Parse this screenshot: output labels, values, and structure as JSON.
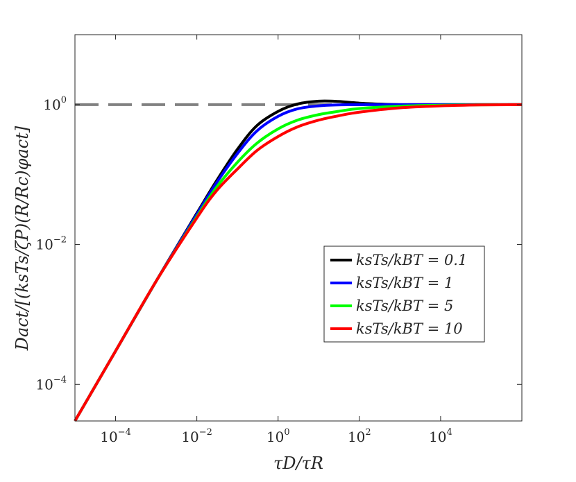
{
  "chart_data": {
    "type": "line",
    "title": "",
    "xlabel": "τD/τR",
    "ylabel": "Dact/[(ksTs/ζP)(R/Rc)φact]",
    "xscale": "log",
    "yscale": "log",
    "xlim": [
      1e-05,
      1000000.0
    ],
    "ylim": [
      3e-05,
      10
    ],
    "grid": false,
    "legend_position": "center-right",
    "x_ticks": [
      {
        "value": 0.0001,
        "base": "10",
        "exp": "−4"
      },
      {
        "value": 0.01,
        "base": "10",
        "exp": "−2"
      },
      {
        "value": 1,
        "base": "10",
        "exp": "0"
      },
      {
        "value": 100,
        "base": "10",
        "exp": "2"
      },
      {
        "value": 10000,
        "base": "10",
        "exp": "4"
      }
    ],
    "y_ticks": [
      {
        "value": 0.0001,
        "base": "10",
        "exp": "−4"
      },
      {
        "value": 0.01,
        "base": "10",
        "exp": "−2"
      },
      {
        "value": 1,
        "base": "10",
        "exp": "0"
      }
    ],
    "reference_line": {
      "y": 1,
      "style": "dashed",
      "color": "#808080"
    },
    "series": [
      {
        "name": "ksTs/kBT = 0.1",
        "color": "#000000",
        "x": [
          1e-05,
          0.0001,
          0.001,
          0.01,
          0.03,
          0.1,
          0.3,
          1,
          3,
          10,
          30,
          100,
          300,
          1000,
          3000,
          10000,
          100000,
          1000000
        ],
        "y": [
          3e-05,
          0.0003,
          0.003,
          0.028,
          0.08,
          0.23,
          0.5,
          0.8,
          1.02,
          1.12,
          1.11,
          1.05,
          1.02,
          1.0,
          1.0,
          1.0,
          1.0,
          1.0
        ]
      },
      {
        "name": "ksTs/kBT = 1",
        "color": "#0000ff",
        "x": [
          1e-05,
          0.0001,
          0.001,
          0.01,
          0.03,
          0.1,
          0.3,
          1,
          3,
          10,
          30,
          100,
          1000,
          10000,
          1000000
        ],
        "y": [
          3e-05,
          0.0003,
          0.003,
          0.027,
          0.075,
          0.2,
          0.42,
          0.68,
          0.87,
          0.96,
          0.99,
          1.0,
          1.0,
          1.0,
          1.0
        ]
      },
      {
        "name": "ksTs/kBT = 5",
        "color": "#00ff00",
        "x": [
          1e-05,
          0.0001,
          0.001,
          0.01,
          0.03,
          0.1,
          0.3,
          1,
          3,
          10,
          30,
          100,
          1000,
          10000,
          100000,
          1000000
        ],
        "y": [
          3e-05,
          0.0003,
          0.003,
          0.025,
          0.065,
          0.15,
          0.28,
          0.45,
          0.6,
          0.72,
          0.8,
          0.88,
          0.95,
          0.98,
          0.995,
          1.0
        ]
      },
      {
        "name": "ksTs/kBT = 10",
        "color": "#ff0000",
        "x": [
          1e-05,
          0.0001,
          0.001,
          0.01,
          0.03,
          0.1,
          0.3,
          1,
          3,
          10,
          30,
          100,
          1000,
          10000,
          100000,
          1000000
        ],
        "y": [
          3e-05,
          0.0003,
          0.003,
          0.024,
          0.058,
          0.12,
          0.22,
          0.35,
          0.48,
          0.6,
          0.69,
          0.78,
          0.9,
          0.96,
          0.99,
          1.0
        ]
      }
    ]
  }
}
